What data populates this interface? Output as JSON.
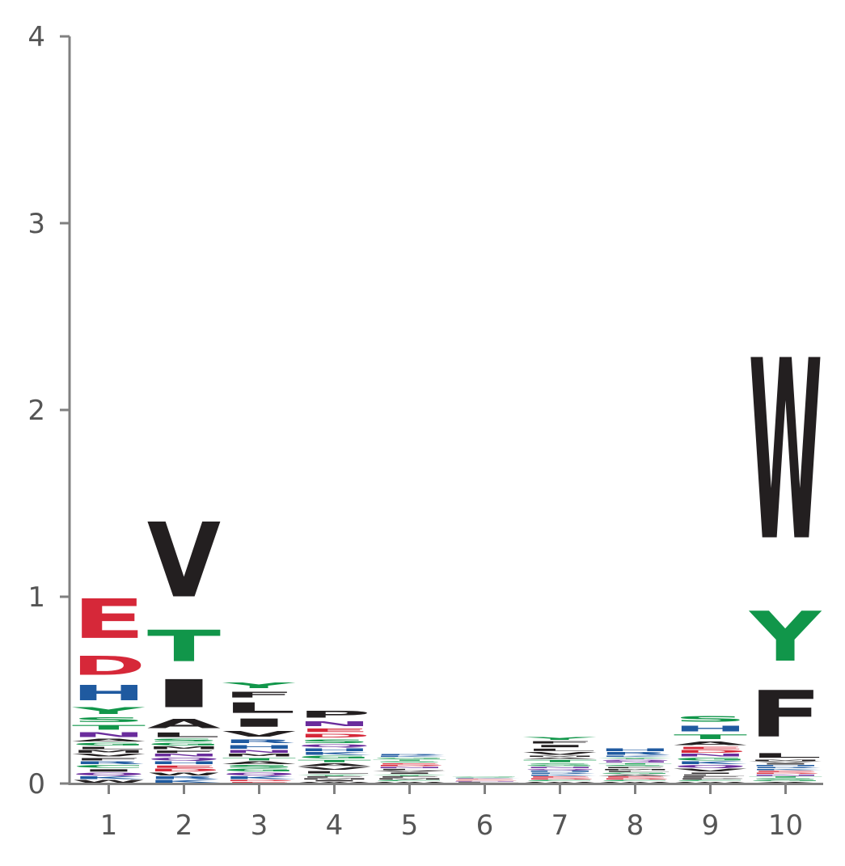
{
  "chart_data": {
    "type": "sequence-logo",
    "title": "",
    "xlabel": "",
    "ylabel": "",
    "ylim": [
      0,
      4
    ],
    "y_ticks": [
      "0",
      "1",
      "2",
      "3",
      "4"
    ],
    "x_ticks": [
      "1",
      "2",
      "3",
      "4",
      "5",
      "6",
      "7",
      "8",
      "9",
      "10"
    ],
    "grid": false,
    "colors": {
      "acidic": "#d62839",
      "basic": "#1f5aa0",
      "polar": "#11964a",
      "hydrophobic": "#231f20",
      "neutral": "#6a2c9c",
      "axis": "#808080",
      "tick_text": "#555555"
    },
    "positions": [
      {
        "position": "1",
        "letters": [
          {
            "letter": "W",
            "value": 0.02
          },
          {
            "letter": "K",
            "value": 0.02
          },
          {
            "letter": "Q",
            "value": 0.02
          },
          {
            "letter": "I",
            "value": 0.02
          },
          {
            "letter": "C",
            "value": 0.02
          },
          {
            "letter": "R",
            "value": 0.02
          },
          {
            "letter": "F",
            "value": 0.02
          },
          {
            "letter": "V",
            "value": 0.02
          },
          {
            "letter": "M",
            "value": 0.02
          },
          {
            "letter": "L",
            "value": 0.02
          },
          {
            "letter": "G",
            "value": 0.02
          },
          {
            "letter": "A",
            "value": 0.02
          },
          {
            "letter": "N",
            "value": 0.04
          },
          {
            "letter": "T",
            "value": 0.04
          },
          {
            "letter": "S",
            "value": 0.04
          },
          {
            "letter": "Y",
            "value": 0.06
          },
          {
            "letter": "H",
            "value": 0.13
          },
          {
            "letter": "D",
            "value": 0.16
          },
          {
            "letter": "E",
            "value": 0.34
          }
        ]
      },
      {
        "position": "2",
        "letters": [
          {
            "letter": "K",
            "value": 0.02
          },
          {
            "letter": "R",
            "value": 0.02
          },
          {
            "letter": "W",
            "value": 0.02
          },
          {
            "letter": "D",
            "value": 0.02
          },
          {
            "letter": "E",
            "value": 0.02
          },
          {
            "letter": "H",
            "value": 0.02
          },
          {
            "letter": "Q",
            "value": 0.02
          },
          {
            "letter": "N",
            "value": 0.02
          },
          {
            "letter": "F",
            "value": 0.02
          },
          {
            "letter": "M",
            "value": 0.02
          },
          {
            "letter": "G",
            "value": 0.02
          },
          {
            "letter": "S",
            "value": 0.02
          },
          {
            "letter": "L",
            "value": 0.04
          },
          {
            "letter": "A",
            "value": 0.08
          },
          {
            "letter": "I",
            "value": 0.24
          },
          {
            "letter": "T",
            "value": 0.27
          },
          {
            "letter": "V",
            "value": 0.64
          }
        ]
      },
      {
        "position": "3",
        "letters": [
          {
            "letter": "E",
            "value": 0.01
          },
          {
            "letter": "D",
            "value": 0.01
          },
          {
            "letter": "K",
            "value": 0.02
          },
          {
            "letter": "Q",
            "value": 0.02
          },
          {
            "letter": "G",
            "value": 0.02
          },
          {
            "letter": "S",
            "value": 0.02
          },
          {
            "letter": "A",
            "value": 0.02
          },
          {
            "letter": "T",
            "value": 0.02
          },
          {
            "letter": "M",
            "value": 0.02
          },
          {
            "letter": "N",
            "value": 0.02
          },
          {
            "letter": "H",
            "value": 0.03
          },
          {
            "letter": "R",
            "value": 0.03
          },
          {
            "letter": "V",
            "value": 0.05
          },
          {
            "letter": "I",
            "value": 0.07
          },
          {
            "letter": "L",
            "value": 0.09
          },
          {
            "letter": "F",
            "value": 0.05
          },
          {
            "letter": "Y",
            "value": 0.05
          }
        ]
      },
      {
        "position": "4",
        "letters": [
          {
            "letter": "W",
            "value": 0.01
          },
          {
            "letter": "I",
            "value": 0.01
          },
          {
            "letter": "M",
            "value": 0.01
          },
          {
            "letter": "F",
            "value": 0.01
          },
          {
            "letter": "Y",
            "value": 0.01
          },
          {
            "letter": "L",
            "value": 0.02
          },
          {
            "letter": "V",
            "value": 0.02
          },
          {
            "letter": "A",
            "value": 0.02
          },
          {
            "letter": "T",
            "value": 0.02
          },
          {
            "letter": "G",
            "value": 0.02
          },
          {
            "letter": "K",
            "value": 0.02
          },
          {
            "letter": "H",
            "value": 0.02
          },
          {
            "letter": "Q",
            "value": 0.02
          },
          {
            "letter": "S",
            "value": 0.03
          },
          {
            "letter": "D",
            "value": 0.03
          },
          {
            "letter": "E",
            "value": 0.03
          },
          {
            "letter": "N",
            "value": 0.04
          },
          {
            "letter": "P",
            "value": 0.06
          }
        ]
      },
      {
        "position": "5",
        "letters": [
          {
            "letter": "W",
            "value": 0.01
          },
          {
            "letter": "C",
            "value": 0.01
          },
          {
            "letter": "M",
            "value": 0.01
          },
          {
            "letter": "F",
            "value": 0.01
          },
          {
            "letter": "Y",
            "value": 0.01
          },
          {
            "letter": "I",
            "value": 0.01
          },
          {
            "letter": "V",
            "value": 0.01
          },
          {
            "letter": "L",
            "value": 0.01
          },
          {
            "letter": "N",
            "value": 0.01
          },
          {
            "letter": "D",
            "value": 0.01
          },
          {
            "letter": "E",
            "value": 0.01
          },
          {
            "letter": "S",
            "value": 0.01
          },
          {
            "letter": "T",
            "value": 0.01
          },
          {
            "letter": "G",
            "value": 0.01
          },
          {
            "letter": "K",
            "value": 0.01
          },
          {
            "letter": "R",
            "value": 0.01
          }
        ]
      },
      {
        "position": "6",
        "letters": [
          {
            "letter": "A",
            "value": 0.005
          },
          {
            "letter": "L",
            "value": 0.005
          },
          {
            "letter": "N",
            "value": 0.005
          },
          {
            "letter": "D",
            "value": 0.005
          },
          {
            "letter": "E",
            "value": 0.005
          },
          {
            "letter": "K",
            "value": 0.005
          },
          {
            "letter": "S",
            "value": 0.005
          },
          {
            "letter": "G",
            "value": 0.005
          }
        ]
      },
      {
        "position": "7",
        "letters": [
          {
            "letter": "W",
            "value": 0.01
          },
          {
            "letter": "C",
            "value": 0.01
          },
          {
            "letter": "D",
            "value": 0.01
          },
          {
            "letter": "E",
            "value": 0.01
          },
          {
            "letter": "K",
            "value": 0.01
          },
          {
            "letter": "R",
            "value": 0.01
          },
          {
            "letter": "H",
            "value": 0.01
          },
          {
            "letter": "Q",
            "value": 0.01
          },
          {
            "letter": "N",
            "value": 0.01
          },
          {
            "letter": "G",
            "value": 0.01
          },
          {
            "letter": "S",
            "value": 0.01
          },
          {
            "letter": "T",
            "value": 0.02
          },
          {
            "letter": "A",
            "value": 0.01
          },
          {
            "letter": "M",
            "value": 0.01
          },
          {
            "letter": "V",
            "value": 0.02
          },
          {
            "letter": "L",
            "value": 0.02
          },
          {
            "letter": "I",
            "value": 0.02
          },
          {
            "letter": "F",
            "value": 0.02
          },
          {
            "letter": "Y",
            "value": 0.02
          }
        ]
      },
      {
        "position": "8",
        "letters": [
          {
            "letter": "W",
            "value": 0.01
          },
          {
            "letter": "C",
            "value": 0.01
          },
          {
            "letter": "D",
            "value": 0.01
          },
          {
            "letter": "E",
            "value": 0.01
          },
          {
            "letter": "A",
            "value": 0.01
          },
          {
            "letter": "G",
            "value": 0.01
          },
          {
            "letter": "L",
            "value": 0.01
          },
          {
            "letter": "M",
            "value": 0.01
          },
          {
            "letter": "F",
            "value": 0.01
          },
          {
            "letter": "S",
            "value": 0.01
          },
          {
            "letter": "T",
            "value": 0.01
          },
          {
            "letter": "N",
            "value": 0.01
          },
          {
            "letter": "Q",
            "value": 0.01
          },
          {
            "letter": "Y",
            "value": 0.01
          },
          {
            "letter": "K",
            "value": 0.01
          },
          {
            "letter": "R",
            "value": 0.02
          },
          {
            "letter": "H",
            "value": 0.02
          }
        ]
      },
      {
        "position": "9",
        "letters": [
          {
            "letter": "W",
            "value": 0.01
          },
          {
            "letter": "C",
            "value": 0.01
          },
          {
            "letter": "P",
            "value": 0.01
          },
          {
            "letter": "F",
            "value": 0.01
          },
          {
            "letter": "L",
            "value": 0.01
          },
          {
            "letter": "I",
            "value": 0.01
          },
          {
            "letter": "V",
            "value": 0.02
          },
          {
            "letter": "Q",
            "value": 0.02
          },
          {
            "letter": "K",
            "value": 0.02
          },
          {
            "letter": "G",
            "value": 0.02
          },
          {
            "letter": "N",
            "value": 0.02
          },
          {
            "letter": "D",
            "value": 0.02
          },
          {
            "letter": "E",
            "value": 0.02
          },
          {
            "letter": "A",
            "value": 0.03
          },
          {
            "letter": "T",
            "value": 0.04
          },
          {
            "letter": "H",
            "value": 0.05
          },
          {
            "letter": "S",
            "value": 0.05
          }
        ]
      },
      {
        "position": "10",
        "letters": [
          {
            "letter": "A",
            "value": 0.01
          },
          {
            "letter": "G",
            "value": 0.01
          },
          {
            "letter": "S",
            "value": 0.01
          },
          {
            "letter": "T",
            "value": 0.01
          },
          {
            "letter": "N",
            "value": 0.01
          },
          {
            "letter": "D",
            "value": 0.01
          },
          {
            "letter": "E",
            "value": 0.01
          },
          {
            "letter": "K",
            "value": 0.01
          },
          {
            "letter": "R",
            "value": 0.01
          },
          {
            "letter": "H",
            "value": 0.01
          },
          {
            "letter": "I",
            "value": 0.01
          },
          {
            "letter": "V",
            "value": 0.01
          },
          {
            "letter": "M",
            "value": 0.01
          },
          {
            "letter": "L",
            "value": 0.04
          },
          {
            "letter": "F",
            "value": 0.4
          },
          {
            "letter": "Y",
            "value": 0.43
          },
          {
            "letter": "W",
            "value": 1.55
          }
        ]
      }
    ]
  }
}
